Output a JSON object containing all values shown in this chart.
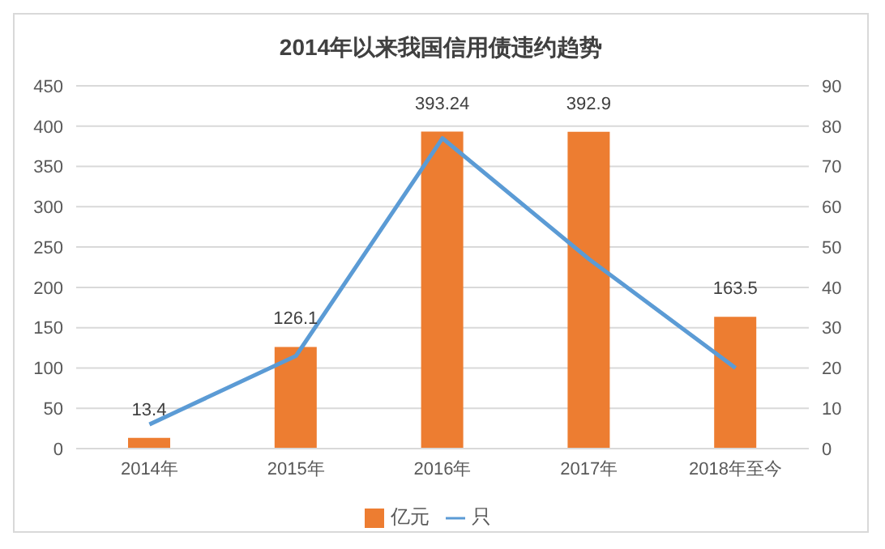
{
  "chart_data": {
    "type": "bar",
    "title": "2014年以来我国信用债违约趋势",
    "categories": [
      "2014年",
      "2015年",
      "2016年",
      "2017年",
      "2018年至今"
    ],
    "series": [
      {
        "name": "亿元",
        "color": "#ed7d31",
        "values": [
          13.4,
          126.1,
          393.24,
          392.9,
          163.5
        ],
        "data_labels": true
      },
      {
        "name": "只",
        "type": "line",
        "color": "#5b9bd5",
        "axis": "y2",
        "values": [
          6,
          23,
          77,
          47,
          20
        ]
      }
    ],
    "ylim": [
      0,
      450
    ],
    "yticks": [
      0,
      50,
      100,
      150,
      200,
      250,
      300,
      350,
      400,
      450
    ],
    "y2lim": [
      0,
      90
    ],
    "y2ticks": [
      0,
      10,
      20,
      30,
      40,
      50,
      60,
      70,
      80,
      90
    ],
    "grid": "y",
    "legend": "bottom",
    "marker": "none"
  }
}
